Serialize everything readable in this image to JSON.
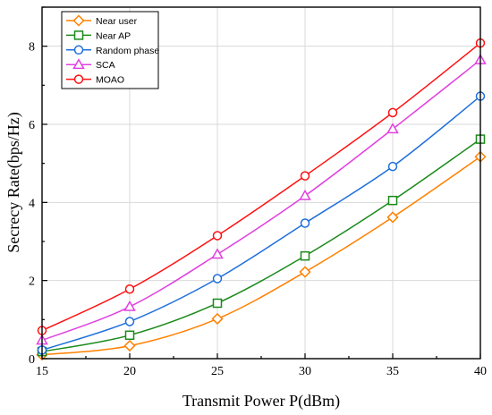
{
  "chart_data": {
    "type": "line",
    "title": "",
    "xlabel": "Transmit Power P(dBm)",
    "ylabel": "Secrecy Rate(bps/Hz)",
    "x": [
      15,
      20,
      25,
      30,
      35,
      40
    ],
    "x_ticks": [
      "15",
      "20",
      "25",
      "30",
      "35",
      "40"
    ],
    "y_ticks": [
      "0",
      "2",
      "4",
      "6",
      "8"
    ],
    "xlim": [
      15,
      40
    ],
    "ylim": [
      0,
      9
    ],
    "grid": true,
    "legend_position": "top-left",
    "series": [
      {
        "name": "Near user",
        "color": "#ff8000",
        "marker": "diamond",
        "values": [
          0.1,
          0.33,
          1.02,
          2.22,
          3.62,
          5.17
        ]
      },
      {
        "name": "Near AP",
        "color": "#1a8a1a",
        "marker": "square",
        "values": [
          0.18,
          0.6,
          1.42,
          2.63,
          4.05,
          5.62
        ]
      },
      {
        "name": "Random phase",
        "color": "#1f6fdb",
        "marker": "circle",
        "values": [
          0.22,
          0.95,
          2.05,
          3.47,
          4.92,
          6.72
        ]
      },
      {
        "name": "SCA",
        "color": "#e040e0",
        "marker": "triangle",
        "values": [
          0.47,
          1.33,
          2.67,
          4.17,
          5.88,
          7.65
        ]
      },
      {
        "name": "MOAO",
        "color": "#ff1010",
        "marker": "circle",
        "values": [
          0.72,
          1.78,
          3.15,
          4.68,
          6.3,
          8.08
        ]
      }
    ]
  }
}
